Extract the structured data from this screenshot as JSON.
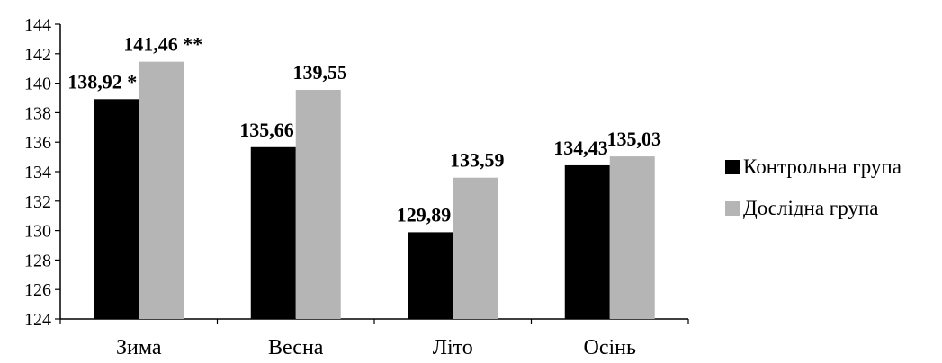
{
  "chart_data": {
    "type": "bar",
    "categories": [
      "Зима",
      "Весна",
      "Літо",
      "Осінь"
    ],
    "series": [
      {
        "name": "Контрольна група",
        "values": [
          138.92,
          135.66,
          129.89,
          134.43
        ],
        "color": "#000000"
      },
      {
        "name": "Дослідна  група",
        "values": [
          141.46,
          139.55,
          133.59,
          135.03
        ],
        "color": "#b5b5b5"
      }
    ],
    "data_labels": [
      [
        "138,92 *",
        "135,66",
        "129,89",
        "134,43"
      ],
      [
        "141,46 **",
        "139,55",
        "133,59",
        "135,03"
      ]
    ],
    "yticks": [
      124,
      126,
      128,
      130,
      132,
      134,
      136,
      138,
      140,
      142,
      144
    ],
    "ylim": [
      124,
      144
    ],
    "grid": false,
    "legend_position": "right"
  }
}
